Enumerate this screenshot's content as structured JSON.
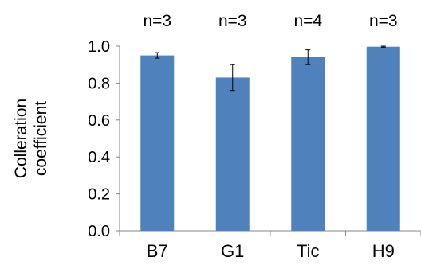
{
  "chart_data": {
    "type": "bar",
    "categories": [
      "B7",
      "G1",
      "Tic",
      "H9"
    ],
    "values": [
      0.95,
      0.83,
      0.94,
      0.997
    ],
    "errors": [
      0.015,
      0.07,
      0.04,
      0.003
    ],
    "annotations": [
      "n=3",
      "n=3",
      "n=4",
      "n=3"
    ],
    "ylabel": "Colleration coefficient",
    "ylabel_lines": [
      "Colleration",
      "coefficient"
    ],
    "ylim": [
      0,
      1.0
    ],
    "yticks": [
      0.0,
      0.2,
      0.4,
      0.6,
      0.8,
      1.0
    ],
    "ytick_labels": [
      "0.0",
      "0.2",
      "0.4",
      "0.6",
      "0.8",
      "1.0"
    ],
    "bar_color": "#4f81bd",
    "grid": false,
    "legend": "none"
  }
}
